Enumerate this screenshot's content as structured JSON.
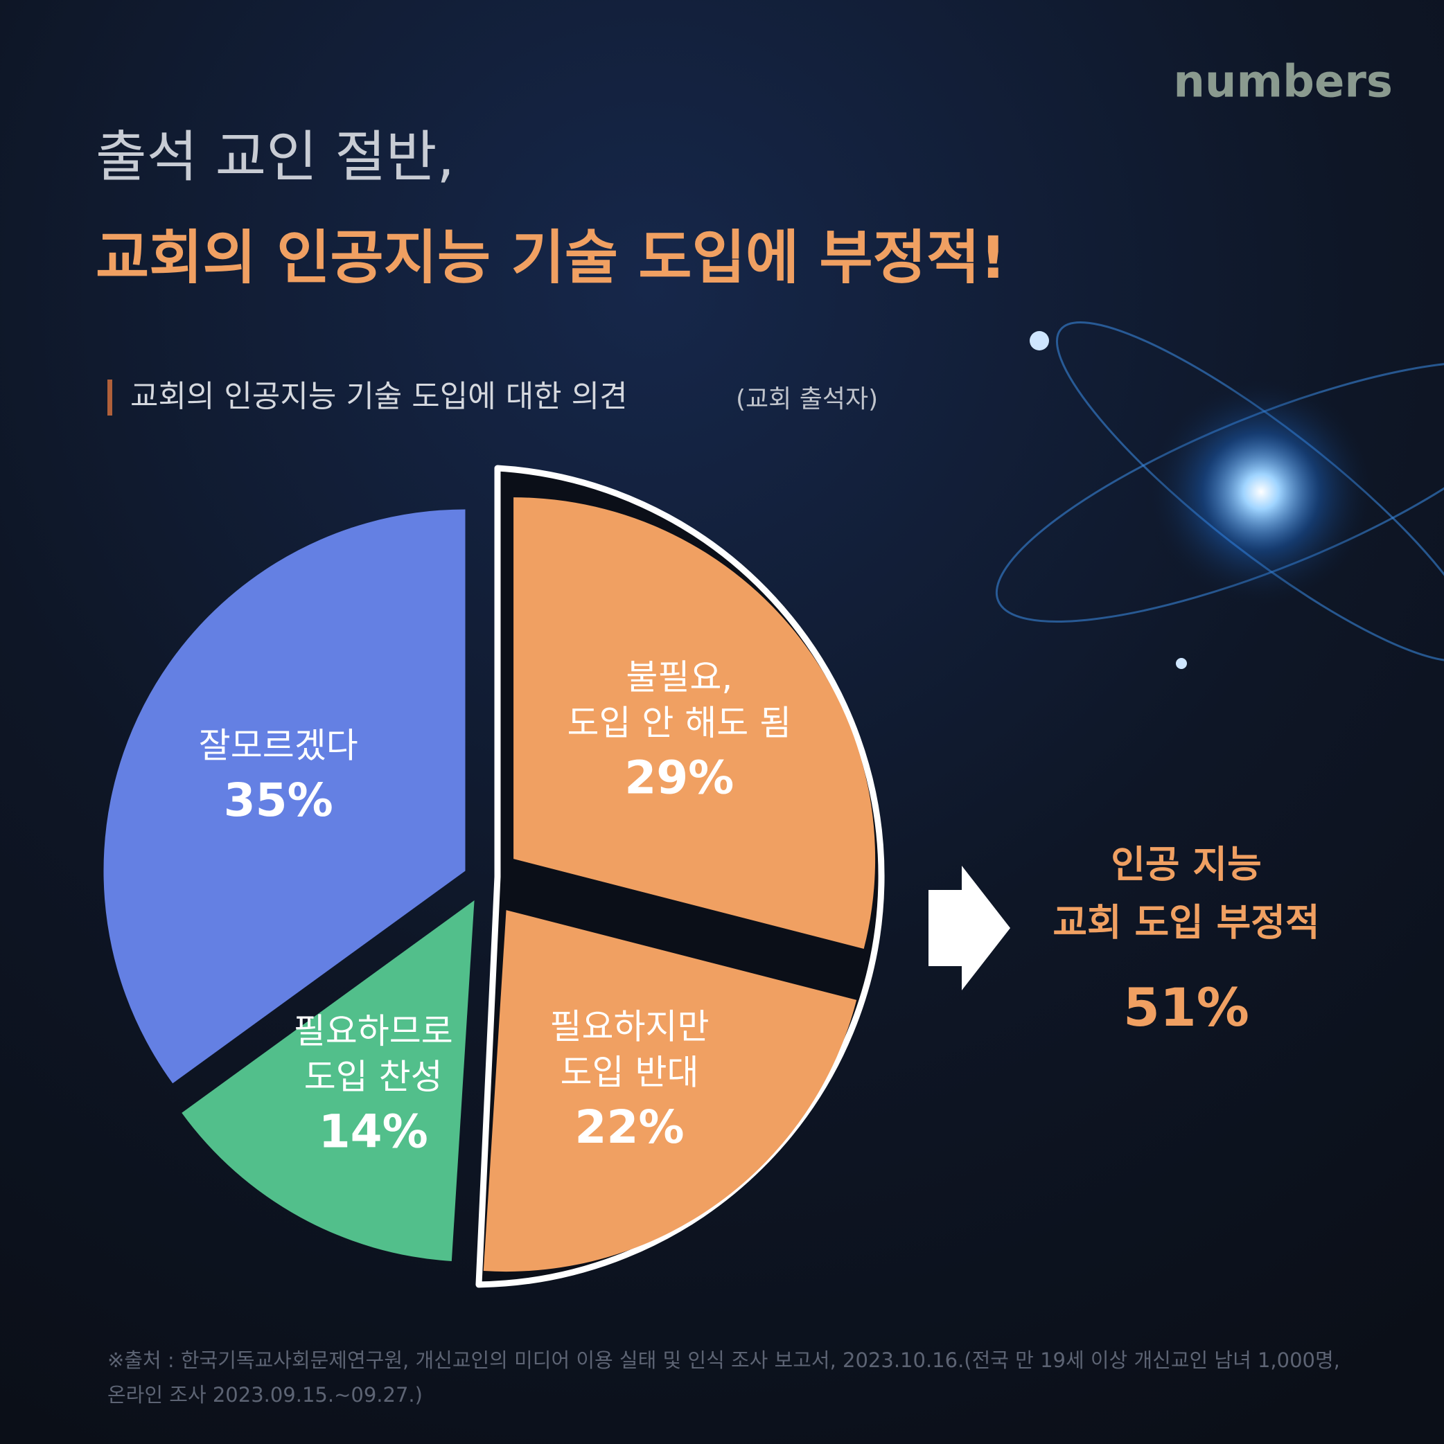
{
  "header": {
    "logo": "numbers",
    "title_lines": [
      "출석 교인 절반,",
      "교회의 인공지능 기술 도입에 부정적!"
    ]
  },
  "chart_data": {
    "type": "pie",
    "title": "교회의 인공지능 기술 도입에 대한 의견",
    "subtitle": "(교회 출석자)",
    "categories": [
      [
        "불필요,",
        "도입 안 해도 됨"
      ],
      [
        "필요하지만",
        "도입 반대"
      ],
      [
        "필요하므로",
        "도입 찬성"
      ],
      [
        "잘모르겠다"
      ]
    ],
    "values": [
      29,
      22,
      14,
      35
    ],
    "value_labels": [
      "29%",
      "22%",
      "14%",
      "35%"
    ],
    "colors": [
      "#f0a062",
      "#f0a062",
      "#52bf8b",
      "#6480e3"
    ],
    "annotation": {
      "lines": [
        "인공 지능",
        "교회 도입 부정적"
      ],
      "value": 51,
      "value_label": "51%"
    }
  },
  "footer": {
    "source_lines": [
      "※출처 : 한국기독교사회문제연구원, 개신교인의 미디어 이용 실태 및 인식 조사 보고서, 2023.10.16.(전국 만 19세 이상 개신교인 남녀 1,000명,",
      "온라인 조사 2023.09.15.~09.27.)"
    ]
  }
}
